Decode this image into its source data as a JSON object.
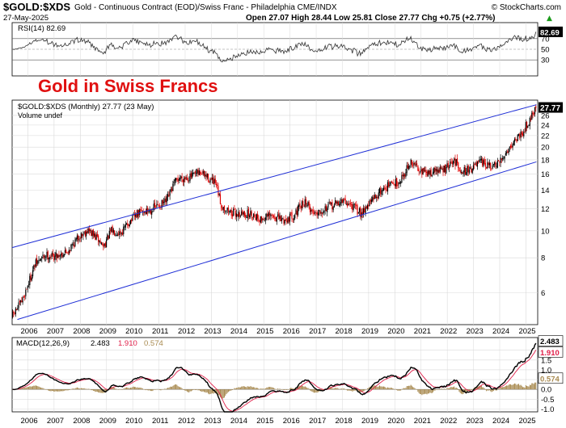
{
  "header": {
    "symbol": "$GOLD:$XDS",
    "description": "Gold - Continuous Contract (EOD)/Swiss Franc - Philadelphia CME/INDX",
    "watermark": "© StockCharts.com",
    "date": "27-May-2025",
    "quote": "Open 27.07  High 28.44  Low 25.81  Close 27.77  Chg +0.75 (+2.77%)",
    "quote_arrow": "▲"
  },
  "rsi_panel": {
    "legend": "RSI(14) 82.69",
    "last_value": 82.69,
    "scale_labels": [
      "70",
      "50",
      "30"
    ],
    "current_label": "82.69",
    "ylim": [
      0,
      100
    ]
  },
  "price_panel": {
    "overlay_title": "Gold in Swiss Francs",
    "legend_price": "$GOLD:$XDS (Monthly) 27.77 (23 May)",
    "legend_volume": "Volume undef",
    "current_label": "27.77",
    "y_ticks": [
      "26",
      "24",
      "22",
      "20",
      "18",
      "16",
      "14",
      "12",
      "10",
      "8",
      "6"
    ],
    "scale": "log"
  },
  "macd_panel": {
    "legend_name": "MACD(12,26,9)",
    "legend_macd": "2.483",
    "legend_signal": "1.910",
    "legend_hist": "0.574",
    "y_ticks": [
      "2.0",
      "1.5",
      "1.0",
      "0.5",
      "0.0",
      "-0.5",
      "-1.0"
    ],
    "label_macd": "2.483",
    "label_signal": "1.910",
    "label_hist": "0.574"
  },
  "x_axis_labels": [
    "2006",
    "2007",
    "2008",
    "2009",
    "2010",
    "2011",
    "2012",
    "2013",
    "2014",
    "2015",
    "2016",
    "2017",
    "2018",
    "2019",
    "2020",
    "2021",
    "2022",
    "2023",
    "2024",
    "2025"
  ],
  "colors": {
    "up": "#000000",
    "down": "#e00000",
    "channel": "#1f2fd6",
    "title_red": "#e01010",
    "macd": "#000000",
    "signal": "#e0204a",
    "hist": "#a88a50",
    "current_box": "#000000",
    "grid": "#d9d9d9"
  },
  "chart_data": {
    "type": "candlestick",
    "x_unit": "year",
    "price_anchors": [
      [
        2005.4,
        4.9
      ],
      [
        2005.8,
        5.6
      ],
      [
        2006.3,
        7.6
      ],
      [
        2006.7,
        8.2
      ],
      [
        2007.0,
        8.1
      ],
      [
        2007.5,
        8.4
      ],
      [
        2008.0,
        9.6
      ],
      [
        2008.3,
        10.1
      ],
      [
        2008.7,
        9.3
      ],
      [
        2008.9,
        8.8
      ],
      [
        2009.2,
        10.0
      ],
      [
        2009.6,
        9.9
      ],
      [
        2009.9,
        10.8
      ],
      [
        2010.3,
        11.7
      ],
      [
        2010.6,
        11.8
      ],
      [
        2010.9,
        12.2
      ],
      [
        2011.3,
        12.7
      ],
      [
        2011.6,
        14.8
      ],
      [
        2011.8,
        15.5
      ],
      [
        2012.2,
        15.6
      ],
      [
        2012.6,
        16.2
      ],
      [
        2012.9,
        15.5
      ],
      [
        2013.2,
        14.6
      ],
      [
        2013.4,
        12.3
      ],
      [
        2013.8,
        11.6
      ],
      [
        2014.2,
        11.5
      ],
      [
        2014.6,
        11.5
      ],
      [
        2014.9,
        11.0
      ],
      [
        2015.3,
        11.3
      ],
      [
        2015.8,
        10.9
      ],
      [
        2016.2,
        11.5
      ],
      [
        2016.6,
        12.8
      ],
      [
        2016.9,
        11.6
      ],
      [
        2017.3,
        12.0
      ],
      [
        2017.7,
        12.4
      ],
      [
        2018.0,
        12.8
      ],
      [
        2018.4,
        12.3
      ],
      [
        2018.7,
        11.6
      ],
      [
        2019.0,
        12.4
      ],
      [
        2019.5,
        14.0
      ],
      [
        2019.8,
        14.6
      ],
      [
        2020.2,
        15.1
      ],
      [
        2020.6,
        17.5
      ],
      [
        2020.9,
        17.0
      ],
      [
        2021.2,
        16.0
      ],
      [
        2021.6,
        16.5
      ],
      [
        2021.9,
        16.6
      ],
      [
        2022.3,
        17.8
      ],
      [
        2022.6,
        16.4
      ],
      [
        2022.9,
        16.7
      ],
      [
        2023.3,
        17.6
      ],
      [
        2023.7,
        16.9
      ],
      [
        2024.0,
        17.4
      ],
      [
        2024.3,
        19.5
      ],
      [
        2024.6,
        21.2
      ],
      [
        2024.9,
        22.8
      ],
      [
        2025.2,
        25.5
      ],
      [
        2025.38,
        27.77
      ]
    ],
    "channel_upper": {
      "x": [
        2005.4,
        2025.4
      ],
      "y": [
        8.7,
        28.4
      ]
    },
    "channel_lower": {
      "x": [
        2005.6,
        2025.4
      ],
      "y": [
        4.8,
        17.7
      ]
    },
    "rsi_last": 82.69,
    "macd_last": 2.483,
    "signal_last": 1.91,
    "hist_last": 0.574
  }
}
